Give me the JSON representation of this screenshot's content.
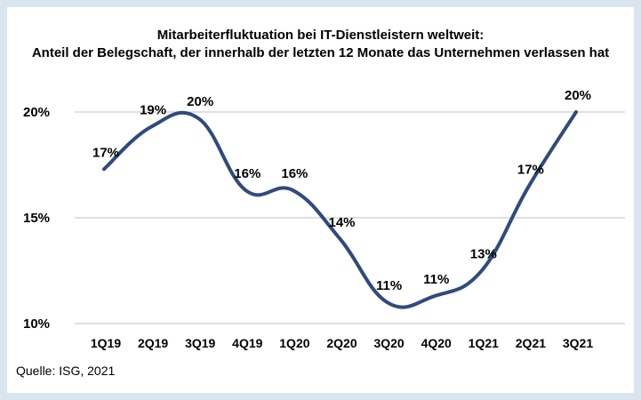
{
  "chart_data": {
    "type": "line",
    "title_line1": "Mitarbeiterfluktuation bei IT-Dienstleistern weltweit:",
    "title_line2": "Anteil der Belegschaft, der innerhalb der letzten 12 Monate das Unternehmen verlassen hat",
    "categories": [
      "1Q19",
      "2Q19",
      "3Q19",
      "4Q19",
      "1Q20",
      "2Q20",
      "3Q20",
      "4Q20",
      "1Q21",
      "2Q21",
      "3Q21"
    ],
    "values": [
      17.3,
      19.3,
      19.7,
      16.3,
      16.3,
      14.0,
      11.0,
      11.3,
      12.5,
      16.5,
      20.0
    ],
    "labels": [
      "17%",
      "19%",
      "20%",
      "16%",
      "16%",
      "14%",
      "11%",
      "11%",
      "13%",
      "17%",
      "20%"
    ],
    "yticks": [
      {
        "value": 10,
        "label": "10%"
      },
      {
        "value": 15,
        "label": "15%"
      },
      {
        "value": 20,
        "label": "20%"
      }
    ],
    "ylim": [
      10,
      20
    ],
    "grid": true,
    "line_color": "#2f4a7e",
    "grid_color": "#bfbfbf"
  },
  "source": "Quelle: ISG, 2021",
  "colors": {
    "background": "#dbe4f1",
    "card": "#ffffff"
  }
}
